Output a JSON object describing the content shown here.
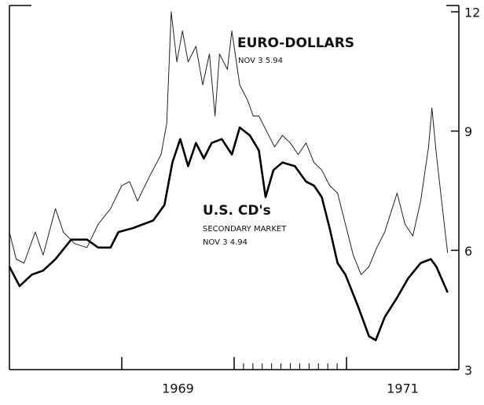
{
  "chart_data": {
    "type": "line",
    "annotations": [
      "EURO-DOLLARS",
      "NOV 3 5.94",
      "U.S. CD's",
      "SECONDARY MARKET",
      "NOV 3 4.94"
    ],
    "xlim": [
      1968,
      1972
    ],
    "xticks": [
      {
        "value": 1969.5,
        "label": "1969"
      },
      {
        "value": 1971.5,
        "label": "1971"
      }
    ],
    "ylim": [
      3,
      12
    ],
    "yticks": [
      3,
      6,
      9,
      12
    ],
    "series": [
      {
        "name": "EURO-DOLLARS",
        "color": "#222",
        "width": 1,
        "x": [
          1968.0,
          1968.06,
          1968.13,
          1968.23,
          1968.3,
          1968.41,
          1968.48,
          1968.58,
          1968.69,
          1968.79,
          1968.9,
          1969.0,
          1969.07,
          1969.14,
          1969.24,
          1969.35,
          1969.4,
          1969.44,
          1969.49,
          1969.54,
          1969.59,
          1969.66,
          1969.72,
          1969.78,
          1969.83,
          1969.87,
          1969.94,
          1969.98,
          1970.05,
          1970.12,
          1970.17,
          1970.22,
          1970.29,
          1970.36,
          1970.43,
          1970.5,
          1970.57,
          1970.64,
          1970.71,
          1970.78,
          1970.85,
          1970.92,
          1970.99,
          1971.06,
          1971.13,
          1971.2,
          1971.27,
          1971.34,
          1971.45,
          1971.52,
          1971.59,
          1971.66,
          1971.73,
          1971.76,
          1971.8,
          1971.87,
          1971.9
        ],
        "values": [
          6.46,
          5.78,
          5.68,
          6.46,
          5.88,
          7.05,
          6.46,
          6.17,
          6.07,
          6.66,
          7.05,
          7.63,
          7.73,
          7.24,
          7.82,
          8.41,
          9.19,
          12.0,
          10.74,
          11.52,
          10.74,
          11.13,
          10.16,
          10.94,
          9.38,
          10.94,
          10.55,
          11.52,
          10.16,
          9.77,
          9.38,
          9.38,
          8.99,
          8.6,
          8.89,
          8.7,
          8.41,
          8.7,
          8.21,
          8.02,
          7.63,
          7.44,
          6.66,
          5.88,
          5.39,
          5.59,
          6.07,
          6.46,
          7.44,
          6.66,
          6.36,
          7.24,
          8.6,
          9.58,
          8.41,
          6.66,
          5.94
        ]
      },
      {
        "name": "U.S. CD's",
        "color": "#000",
        "width": 2.6,
        "x": [
          1968.0,
          1968.09,
          1968.2,
          1968.3,
          1968.41,
          1968.55,
          1968.69,
          1968.79,
          1968.9,
          1968.97,
          1969.1,
          1969.28,
          1969.38,
          1969.45,
          1969.52,
          1969.59,
          1969.66,
          1969.73,
          1969.8,
          1969.89,
          1969.98,
          1970.05,
          1970.14,
          1970.22,
          1970.28,
          1970.35,
          1970.43,
          1970.54,
          1970.64,
          1970.71,
          1970.78,
          1970.85,
          1970.92,
          1970.99,
          1971.1,
          1971.2,
          1971.26,
          1971.34,
          1971.45,
          1971.55,
          1971.66,
          1971.75,
          1971.8,
          1971.9
        ],
        "values": [
          5.59,
          5.1,
          5.39,
          5.49,
          5.78,
          6.27,
          6.27,
          6.07,
          6.07,
          6.46,
          6.56,
          6.75,
          7.14,
          8.21,
          8.8,
          8.12,
          8.7,
          8.31,
          8.7,
          8.8,
          8.41,
          9.09,
          8.89,
          8.51,
          7.34,
          8.02,
          8.21,
          8.12,
          7.73,
          7.63,
          7.34,
          6.56,
          5.68,
          5.39,
          4.61,
          3.84,
          3.74,
          4.32,
          4.81,
          5.3,
          5.68,
          5.78,
          5.59,
          4.94
        ]
      }
    ]
  }
}
